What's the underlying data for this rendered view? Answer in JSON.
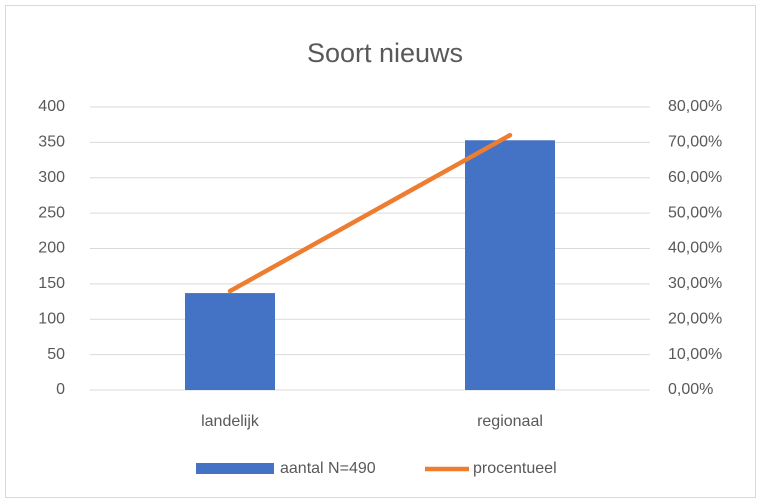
{
  "chart_data": {
    "type": "bar",
    "title": "Soort nieuws",
    "categories": [
      "landelijk",
      "regionaal"
    ],
    "series": [
      {
        "name": "aantal N=490",
        "type": "bar",
        "color": "#4472c4",
        "values": [
          137,
          353
        ]
      },
      {
        "name": "procentueel",
        "type": "line",
        "axis": "y2",
        "color": "#ed7d31",
        "values": [
          27.96,
          72.04
        ]
      }
    ],
    "ylim": [
      0,
      400
    ],
    "yticks": [
      0,
      50,
      100,
      150,
      200,
      250,
      300,
      350,
      400
    ],
    "y2lim": [
      0,
      80
    ],
    "y2ticks": [
      {
        "value": 0,
        "label": "0,00%"
      },
      {
        "value": 10,
        "label": "10,00%"
      },
      {
        "value": 20,
        "label": "20,00%"
      },
      {
        "value": 30,
        "label": "30,00%"
      },
      {
        "value": 40,
        "label": "40,00%"
      },
      {
        "value": 50,
        "label": "50,00%"
      },
      {
        "value": 60,
        "label": "60,00%"
      },
      {
        "value": 70,
        "label": "70,00%"
      },
      {
        "value": 80,
        "label": "80,00%"
      }
    ],
    "grid": true,
    "legend": "bottom"
  }
}
